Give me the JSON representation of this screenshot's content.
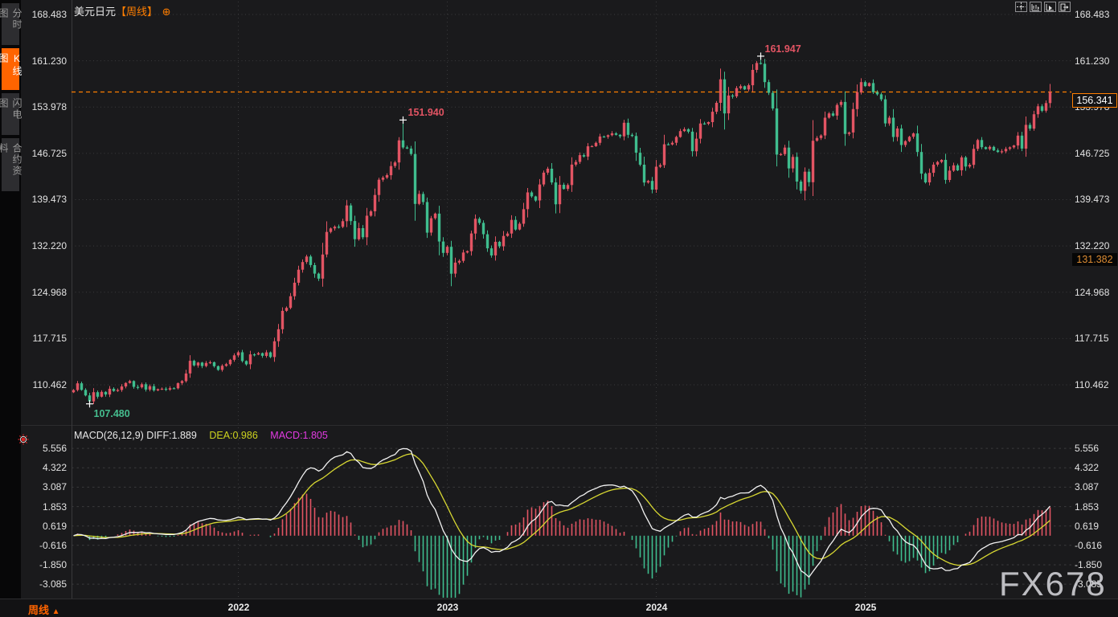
{
  "header": {
    "symbol": "美元日元",
    "period_tag": "【周线】",
    "add_icon": "⊕"
  },
  "sidebar": {
    "tabs": [
      {
        "label": "分时图",
        "active": false
      },
      {
        "label": "K线图",
        "active": true
      },
      {
        "label": "闪电图",
        "active": false
      },
      {
        "label": "合约资料",
        "active": false
      }
    ]
  },
  "toolbar": {
    "buttons": [
      "crosshair",
      "scale-x",
      "scale-y",
      "exit"
    ]
  },
  "price_axis": {
    "labels": [
      "168.483",
      "161.230",
      "153.978",
      "146.725",
      "139.473",
      "132.220",
      "124.968",
      "117.715",
      "110.462"
    ]
  },
  "macd_axis": {
    "labels": [
      "5.556",
      "4.322",
      "3.087",
      "1.853",
      "0.619",
      "-0.616",
      "-1.850",
      "-3.085"
    ]
  },
  "x_axis": {
    "years": [
      {
        "label": "2022",
        "week_index": 41
      },
      {
        "label": "2023",
        "week_index": 93
      },
      {
        "label": "2024",
        "week_index": 145
      },
      {
        "label": "2025",
        "week_index": 197
      }
    ]
  },
  "annotations": {
    "low_2021": {
      "text": "107.480",
      "week_index": 4,
      "price": 107.48
    },
    "high_2022": {
      "text": "151.940",
      "week_index": 82,
      "price": 151.94
    },
    "high_2024": {
      "text": "161.947",
      "week_index": 171,
      "price": 161.947
    }
  },
  "badges": {
    "current_price": {
      "text": "156.341",
      "price": 156.341
    },
    "level": {
      "text": "131.382",
      "price": 131.382
    }
  },
  "macd_header": {
    "main": "MACD(26,12,9) DIFF:1.889",
    "dea": "DEA:0.986",
    "macd": "MACD:1.805"
  },
  "bottom_bar": {
    "period_label": "周线",
    "arrow": "▲"
  },
  "watermark": "FX678",
  "colors": {
    "up": "#e25463",
    "down": "#3fbd8e",
    "accent": "#ff7e00",
    "diff_line": "#f2f2f2",
    "dea_line": "#d8d832",
    "macd_label": "#e23ae2",
    "grid": "#3b3b3d",
    "background": "#1a1a1c"
  },
  "chart_data": {
    "type": "candlestick+macd",
    "symbol": "美元日元 (USD/JPY)",
    "period": "weekly (周线)",
    "current_price": 156.341,
    "marked_level": 131.382,
    "price_axis_ticks": [
      168.483,
      161.23,
      153.978,
      146.725,
      139.473,
      132.22,
      124.968,
      117.715,
      110.462
    ],
    "macd_axis_ticks": [
      5.556,
      4.322,
      3.087,
      1.853,
      0.619,
      -0.616,
      -1.85,
      -3.085
    ],
    "macd_params": [
      26,
      12,
      9
    ],
    "macd_diff": 1.889,
    "macd_dea": 0.986,
    "macd_value": 1.805,
    "extremes": {
      "low_2021": 107.48,
      "high_2022": 151.94,
      "high_2024": 161.947
    },
    "weekly_closes": [
      109.64,
      110.7,
      109.67,
      108.8,
      107.88,
      109.31,
      108.6,
      109.35,
      108.95,
      109.85,
      109.5,
      109.66,
      110.21,
      110.75,
      111.05,
      110.14,
      110.07,
      110.55,
      109.72,
      110.25,
      109.59,
      109.78,
      109.84,
      109.71,
      109.94,
      109.93,
      110.73,
      111.05,
      112.24,
      114.22,
      113.5,
      113.95,
      113.41,
      113.89,
      114.0,
      113.38,
      112.8,
      113.44,
      113.7,
      114.38,
      115.08,
      115.56,
      114.19,
      113.68,
      115.23,
      115.2,
      115.42,
      115.0,
      115.55,
      114.82,
      117.29,
      119.17,
      122.05,
      122.52,
      124.34,
      126.46,
      128.5,
      129.7,
      130.56,
      129.22,
      127.88,
      127.1,
      130.88,
      134.41,
      134.97,
      135.23,
      135.22,
      136.1,
      138.57,
      136.12,
      133.27,
      135.01,
      133.59,
      136.96,
      137.64,
      140.2,
      142.59,
      142.92,
      143.31,
      144.74,
      145.3,
      148.76,
      147.65,
      147.48,
      146.62,
      138.81,
      140.37,
      139.1,
      134.31,
      136.56,
      137.28,
      132.91,
      131.12,
      132.08,
      127.87,
      129.6,
      129.88,
      131.19,
      131.4,
      134.17,
      136.48,
      135.83,
      134.05,
      131.85,
      130.73,
      132.86,
      132.16,
      133.78,
      134.16,
      136.3,
      134.79,
      135.7,
      137.98,
      140.6,
      139.98,
      139.34,
      141.85,
      143.7,
      144.32,
      142.17,
      138.75,
      141.8,
      141.15,
      141.76,
      144.96,
      145.38,
      146.44,
      146.22,
      147.83,
      147.85,
      148.37,
      149.37,
      149.32,
      149.57,
      149.86,
      149.63,
      149.39,
      151.52,
      149.63,
      149.44,
      146.82,
      144.95,
      142.15,
      142.4,
      141.04,
      144.63,
      144.88,
      148.14,
      148.11,
      148.38,
      149.29,
      150.21,
      150.51,
      150.12,
      147.06,
      149.03,
      151.41,
      151.35,
      151.62,
      153.24,
      154.64,
      158.33,
      152.98,
      155.78,
      155.65,
      156.94,
      157.25,
      156.75,
      157.4,
      159.8,
      160.88,
      160.75,
      157.88,
      156.2,
      153.76,
      146.53,
      146.61,
      147.63,
      144.37,
      146.17,
      142.3,
      140.85,
      143.85,
      142.21,
      148.7,
      149.13,
      149.53,
      152.31,
      152.98,
      152.64,
      154.31,
      154.78,
      149.77,
      150.0,
      153.66,
      156.31,
      157.89,
      157.26,
      157.73,
      156.3,
      155.97,
      155.19,
      151.41,
      152.31,
      149.29,
      150.63,
      148.04,
      148.64,
      149.32,
      149.84,
      146.93,
      143.54,
      142.18,
      143.67,
      144.96,
      145.37,
      145.7,
      142.56,
      144.02,
      144.85,
      144.07,
      146.09,
      144.65,
      144.92,
      147.43,
      148.81,
      147.69,
      147.4,
      147.74,
      147.19,
      146.94,
      147.05,
      147.43,
      147.66,
      147.95,
      149.5,
      147.47,
      151.19,
      150.6,
      152.85,
      154.1,
      153.4,
      154.6,
      156.34
    ],
    "wick_overrides": [
      {
        "i": 4,
        "low": 107.48
      },
      {
        "i": 82,
        "high": 151.94
      },
      {
        "i": 171,
        "high": 161.947
      },
      {
        "i": 243,
        "high": 157.6
      }
    ]
  }
}
